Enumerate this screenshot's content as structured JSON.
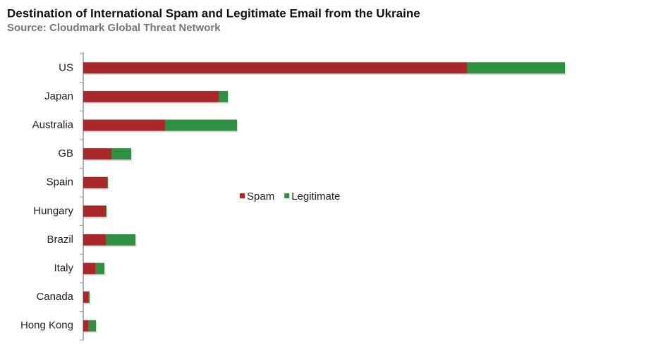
{
  "chart_data": {
    "type": "stacked_barh",
    "title": "Destination of International Spam and Legitimate Email from the Ukraine",
    "subtitle": "Source: Cloudmark Global Threat Network",
    "categories": [
      "US",
      "Japan",
      "Australia",
      "GB",
      "Spain",
      "Hungary",
      "Brazil",
      "Italy",
      "Canada",
      "Hong Kong"
    ],
    "series": [
      {
        "name": "Spam",
        "color": "#a8282a",
        "values": [
          54.4,
          19.2,
          11.6,
          4.0,
          3.4,
          3.2,
          3.2,
          1.7,
          0.7,
          0.7
        ]
      },
      {
        "name": "Legitimate",
        "color": "#2e8f42",
        "values": [
          13.9,
          1.3,
          10.2,
          2.8,
          0.1,
          0.1,
          4.2,
          1.3,
          0.2,
          1.1
        ]
      }
    ],
    "xlim": [
      0,
      70
    ]
  }
}
